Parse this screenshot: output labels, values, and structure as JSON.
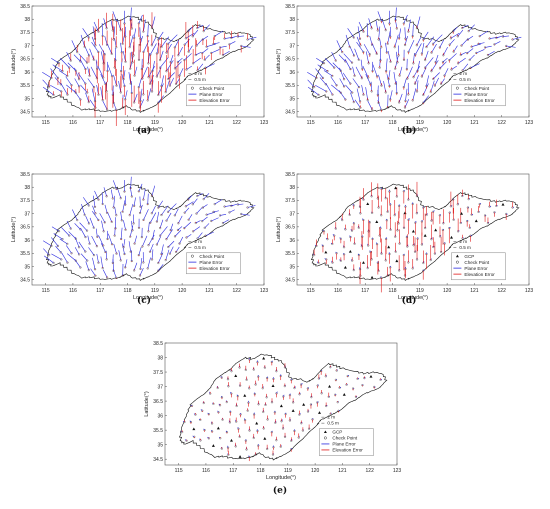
{
  "chart_data": [
    {
      "type": "vector_map",
      "caption": "(a)",
      "xlabel": "Longitude(°)",
      "ylabel": "Latitude(°)",
      "xlim": [
        114.5,
        123
      ],
      "ylim": [
        34.3,
        38.5
      ],
      "xticks": [
        "115",
        "116",
        "117",
        "118",
        "119",
        "120",
        "121",
        "122",
        "123"
      ],
      "yticks": [
        "34.5",
        "35",
        "35.5",
        "36",
        "36.5",
        "37",
        "37.5",
        "38",
        "38.5"
      ],
      "scale_labels": [
        "2 m",
        "0.5 m"
      ],
      "legend": [
        "Check Point",
        "Plane Error",
        "Elevation Error"
      ],
      "plane_error_scale": 1.0,
      "elevation_error_scale": 1.0
    },
    {
      "type": "vector_map",
      "caption": "(b)",
      "xlabel": "Longitude(°)",
      "ylabel": "Latitude(°)",
      "xlim": [
        114.5,
        123
      ],
      "ylim": [
        34.3,
        38.5
      ],
      "xticks": [
        "115",
        "116",
        "117",
        "118",
        "119",
        "120",
        "121",
        "122",
        "123"
      ],
      "yticks": [
        "34.5",
        "35",
        "35.5",
        "36",
        "36.5",
        "37",
        "37.5",
        "38",
        "38.5"
      ],
      "scale_labels": [
        "2 m",
        "0.5 m"
      ],
      "legend": [
        "Check Point",
        "Plane Error",
        "Elevation Error"
      ],
      "plane_error_scale": 1.0,
      "elevation_error_scale": 0.15
    },
    {
      "type": "vector_map",
      "caption": "(c)",
      "xlabel": "Longitude(°)",
      "ylabel": "Latitude(°)",
      "xlim": [
        114.5,
        123
      ],
      "ylim": [
        34.3,
        38.5
      ],
      "xticks": [
        "115",
        "116",
        "117",
        "118",
        "119",
        "120",
        "121",
        "122",
        "123"
      ],
      "yticks": [
        "34.5",
        "35",
        "35.5",
        "36",
        "36.5",
        "37",
        "37.5",
        "38",
        "38.5"
      ],
      "scale_labels": [
        "2 m",
        "0.5 m"
      ],
      "legend": [
        "Check Point",
        "Plane Error",
        "Elevation Error"
      ],
      "plane_error_scale": 0.9,
      "elevation_error_scale": 0.05
    },
    {
      "type": "vector_map",
      "caption": "(d)",
      "xlabel": "Longitude(°)",
      "ylabel": "Latitude(°)",
      "xlim": [
        114.5,
        123
      ],
      "ylim": [
        34.3,
        38.5
      ],
      "xticks": [
        "115",
        "116",
        "117",
        "118",
        "119",
        "120",
        "121",
        "122",
        "123"
      ],
      "yticks": [
        "34.5",
        "35",
        "35.5",
        "36",
        "36.5",
        "37",
        "37.5",
        "38",
        "38.5"
      ],
      "scale_labels": [
        "2 m",
        "0.5 m"
      ],
      "legend": [
        "GCP",
        "Check Point",
        "Plane Error",
        "Elevation Error"
      ],
      "plane_error_scale": 0.15,
      "elevation_error_scale": 0.9
    },
    {
      "type": "vector_map",
      "caption": "(e)",
      "xlabel": "Longitude(°)",
      "ylabel": "Latitude(°)",
      "xlim": [
        114.5,
        123
      ],
      "ylim": [
        34.3,
        38.5
      ],
      "xticks": [
        "115",
        "116",
        "117",
        "118",
        "119",
        "120",
        "121",
        "122",
        "123"
      ],
      "yticks": [
        "34.5",
        "35",
        "35.5",
        "36",
        "36.5",
        "37",
        "37.5",
        "38",
        "38.5"
      ],
      "scale_labels": [
        "2 m",
        "0.5 m"
      ],
      "legend": [
        "GCP",
        "Check Point",
        "Plane Error",
        "Elevation Error"
      ],
      "plane_error_scale": 0.15,
      "elevation_error_scale": 0.25
    }
  ],
  "colors": {
    "plane": "#2a2ae0",
    "elevation": "#e01818",
    "outline": "#111111",
    "point": "#333333"
  }
}
